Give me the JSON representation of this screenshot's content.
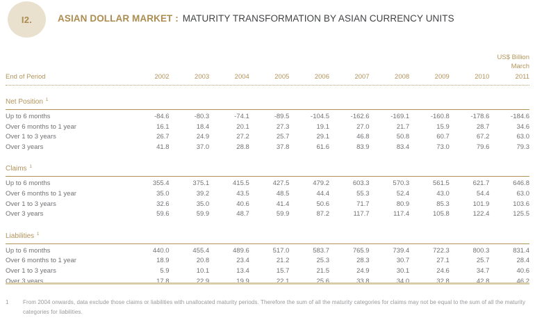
{
  "header": {
    "badge": "I2.",
    "title_bold": "ASIAN DOLLAR MARKET :",
    "title_rest": "MATURITY TRANSFORMATION BY ASIAN CURRENCY UNITS"
  },
  "table": {
    "unit_label": "US$ Billion",
    "month_label": "March",
    "row_header": "End of Period",
    "years": [
      "2002",
      "2003",
      "2004",
      "2005",
      "2006",
      "2007",
      "2008",
      "2009",
      "2010",
      "2011"
    ],
    "sections": [
      {
        "name": "Net Position",
        "footnote_ref": "1",
        "rows": [
          {
            "label": "Up to 6 months",
            "values": [
              "-84.6",
              "-80.3",
              "-74.1",
              "-89.5",
              "-104.5",
              "-162.6",
              "-169.1",
              "-160.8",
              "-178.6",
              "-184.6"
            ]
          },
          {
            "label": "Over 6 months to 1 year",
            "values": [
              "16.1",
              "18.4",
              "20.1",
              "27.3",
              "19.1",
              "27.0",
              "21.7",
              "15.9",
              "28.7",
              "34.6"
            ]
          },
          {
            "label": "Over 1 to 3 years",
            "values": [
              "26.7",
              "24.9",
              "27.2",
              "25.7",
              "29.1",
              "46.8",
              "50.8",
              "60.7",
              "67.2",
              "63.0"
            ]
          },
          {
            "label": "Over 3 years",
            "values": [
              "41.8",
              "37.0",
              "28.8",
              "37.8",
              "61.6",
              "83.9",
              "83.4",
              "73.0",
              "79.6",
              "79.3"
            ]
          }
        ]
      },
      {
        "name": "Claims",
        "footnote_ref": "1",
        "rows": [
          {
            "label": "Up to 6 months",
            "values": [
              "355.4",
              "375.1",
              "415.5",
              "427.5",
              "479.2",
              "603.3",
              "570.3",
              "561.5",
              "621.7",
              "646.8"
            ]
          },
          {
            "label": "Over 6 months to 1 year",
            "values": [
              "35.0",
              "39.2",
              "43.5",
              "48.5",
              "44.4",
              "55.3",
              "52.4",
              "43.0",
              "54.4",
              "63.0"
            ]
          },
          {
            "label": "Over 1 to 3 years",
            "values": [
              "32.6",
              "35.0",
              "40.6",
              "41.4",
              "50.6",
              "71.7",
              "80.9",
              "85.3",
              "101.9",
              "103.6"
            ]
          },
          {
            "label": "Over 3 years",
            "values": [
              "59.6",
              "59.9",
              "48.7",
              "59.9",
              "87.2",
              "117.7",
              "117.4",
              "105.8",
              "122.4",
              "125.5"
            ]
          }
        ]
      },
      {
        "name": "Liabilities",
        "footnote_ref": "1",
        "rows": [
          {
            "label": "Up to 6 months",
            "values": [
              "440.0",
              "455.4",
              "489.6",
              "517.0",
              "583.7",
              "765.9",
              "739.4",
              "722.3",
              "800.3",
              "831.4"
            ]
          },
          {
            "label": "Over 6 months to 1 year",
            "values": [
              "18.9",
              "20.8",
              "23.4",
              "21.2",
              "25.3",
              "28.3",
              "30.7",
              "27.1",
              "25.7",
              "28.4"
            ]
          },
          {
            "label": "Over 1 to 3 years",
            "values": [
              "5.9",
              "10.1",
              "13.4",
              "15.7",
              "21.5",
              "24.9",
              "30.1",
              "24.6",
              "34.7",
              "40.6"
            ]
          },
          {
            "label": "Over 3 years",
            "values": [
              "17.8",
              "22.9",
              "19.9",
              "22.1",
              "25.6",
              "33.8",
              "34.0",
              "32.8",
              "42.8",
              "46.2"
            ]
          }
        ]
      }
    ]
  },
  "footnote": {
    "marker": "1",
    "text": "From 2004 onwards, data exclude those claims or liabilities with unallocated maturity periods. Therefore the sum of all the maturity categories for claims may not be equal to the sum of all the maturity categories for liabilities."
  },
  "colors": {
    "gold_text": "#b2935a",
    "badge_fill": "#e9e1cd",
    "title_dark": "#414244",
    "data_gray": "#707174",
    "footnote_gray": "#97989b",
    "bottom_rule": "#d9cda9"
  }
}
